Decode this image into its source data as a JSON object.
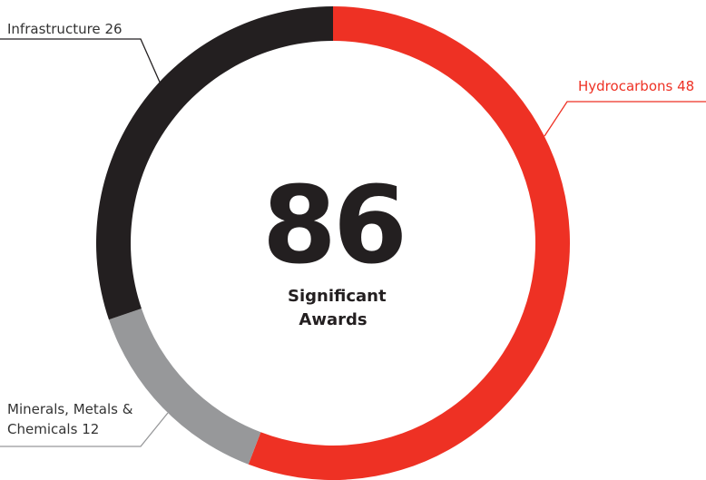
{
  "chart_data": {
    "type": "donut",
    "categories": [
      "Hydrocarbons",
      "Minerals, Metals & Chemicals",
      "Infrastructure"
    ],
    "values": [
      48,
      12,
      26
    ],
    "colors": [
      "#ee3124",
      "#97989a",
      "#231f20"
    ],
    "center_value": 86,
    "center_label": "Significant Awards"
  }
}
